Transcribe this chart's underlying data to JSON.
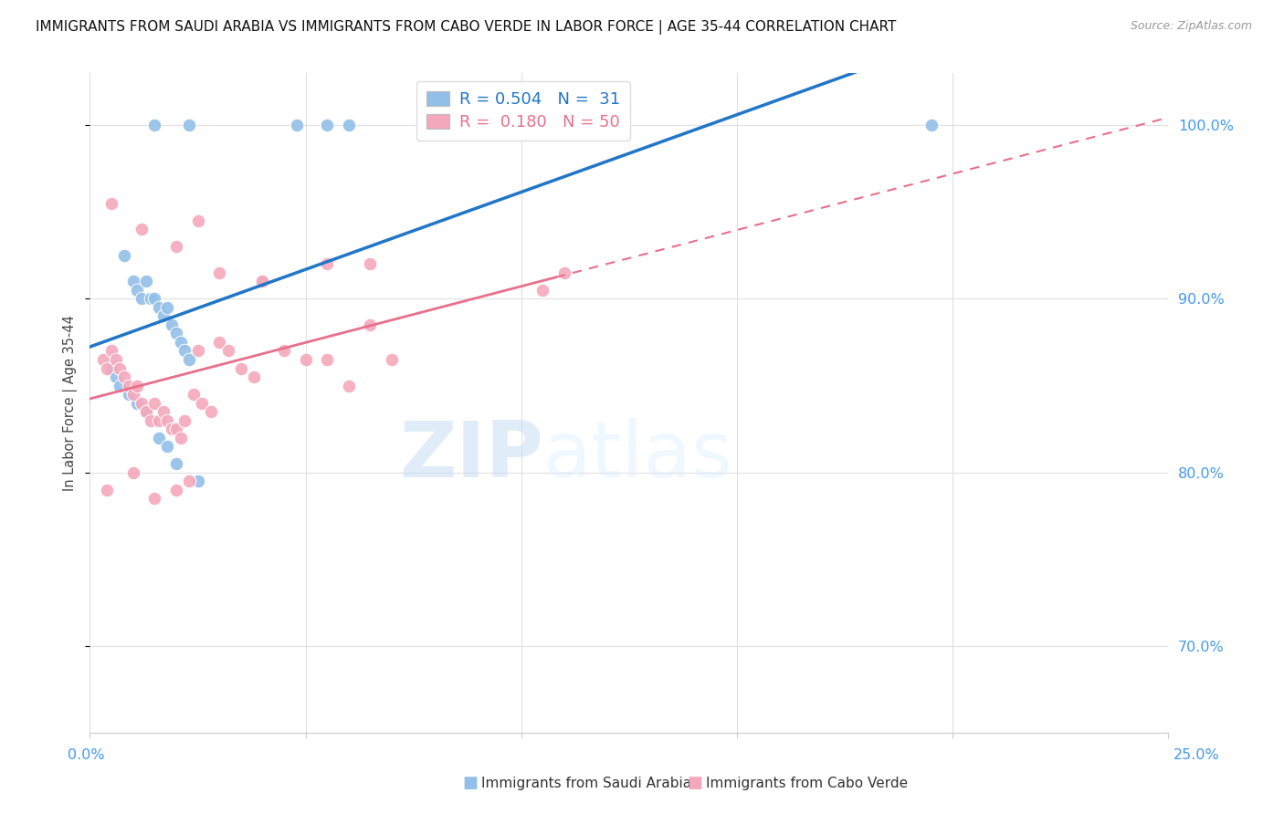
{
  "title": "IMMIGRANTS FROM SAUDI ARABIA VS IMMIGRANTS FROM CABO VERDE IN LABOR FORCE | AGE 35-44 CORRELATION CHART",
  "source": "Source: ZipAtlas.com",
  "ylabel_label": "In Labor Force | Age 35-44",
  "xlim": [
    0.0,
    25.0
  ],
  "ylim": [
    65.0,
    103.0
  ],
  "ylabel_ticks": [
    70.0,
    80.0,
    90.0,
    100.0
  ],
  "saudi_color": "#92bfe8",
  "cabo_color": "#f4a8bc",
  "saudi_line_color": "#2176c7",
  "cabo_line_color": "#e8708c",
  "saudi_x": [
    1.5,
    2.3,
    4.8,
    5.5,
    6.0,
    0.8,
    1.0,
    1.1,
    1.2,
    1.3,
    1.4,
    1.5,
    1.6,
    1.7,
    1.8,
    1.9,
    2.0,
    2.1,
    2.2,
    2.3,
    0.5,
    0.6,
    0.7,
    0.9,
    1.1,
    1.3,
    1.6,
    1.8,
    2.0,
    2.5,
    19.5
  ],
  "saudi_y": [
    100.0,
    100.0,
    100.0,
    100.0,
    100.0,
    92.5,
    91.0,
    90.5,
    90.0,
    91.0,
    90.0,
    90.0,
    89.5,
    89.0,
    89.5,
    88.5,
    88.0,
    87.5,
    87.0,
    86.5,
    86.0,
    85.5,
    85.0,
    84.5,
    84.0,
    83.5,
    82.0,
    81.5,
    80.5,
    79.5,
    100.0
  ],
  "cabo_x": [
    0.3,
    0.4,
    0.5,
    0.6,
    0.7,
    0.8,
    0.9,
    1.0,
    1.1,
    1.2,
    1.3,
    1.4,
    1.5,
    1.6,
    1.7,
    1.8,
    1.9,
    2.0,
    2.1,
    2.2,
    2.4,
    2.5,
    2.6,
    2.8,
    3.0,
    3.2,
    3.5,
    3.8,
    4.0,
    4.5,
    5.0,
    5.5,
    6.0,
    6.5,
    7.0,
    0.5,
    1.2,
    2.0,
    2.5,
    3.0,
    4.0,
    5.5,
    6.5,
    10.5,
    11.0,
    1.5,
    2.0,
    2.3,
    1.0,
    0.4
  ],
  "cabo_y": [
    86.5,
    86.0,
    87.0,
    86.5,
    86.0,
    85.5,
    85.0,
    84.5,
    85.0,
    84.0,
    83.5,
    83.0,
    84.0,
    83.0,
    83.5,
    83.0,
    82.5,
    82.5,
    82.0,
    83.0,
    84.5,
    87.0,
    84.0,
    83.5,
    87.5,
    87.0,
    86.0,
    85.5,
    91.0,
    87.0,
    86.5,
    86.5,
    85.0,
    88.5,
    86.5,
    95.5,
    94.0,
    93.0,
    94.5,
    91.5,
    91.0,
    92.0,
    92.0,
    90.5,
    91.5,
    78.5,
    79.0,
    79.5,
    80.0,
    79.0
  ],
  "cabo_solid_end_x": 10.8,
  "watermark_zip": "ZIP",
  "watermark_atlas": "atlas",
  "background_color": "#ffffff",
  "grid_color": "#e0e0e0"
}
